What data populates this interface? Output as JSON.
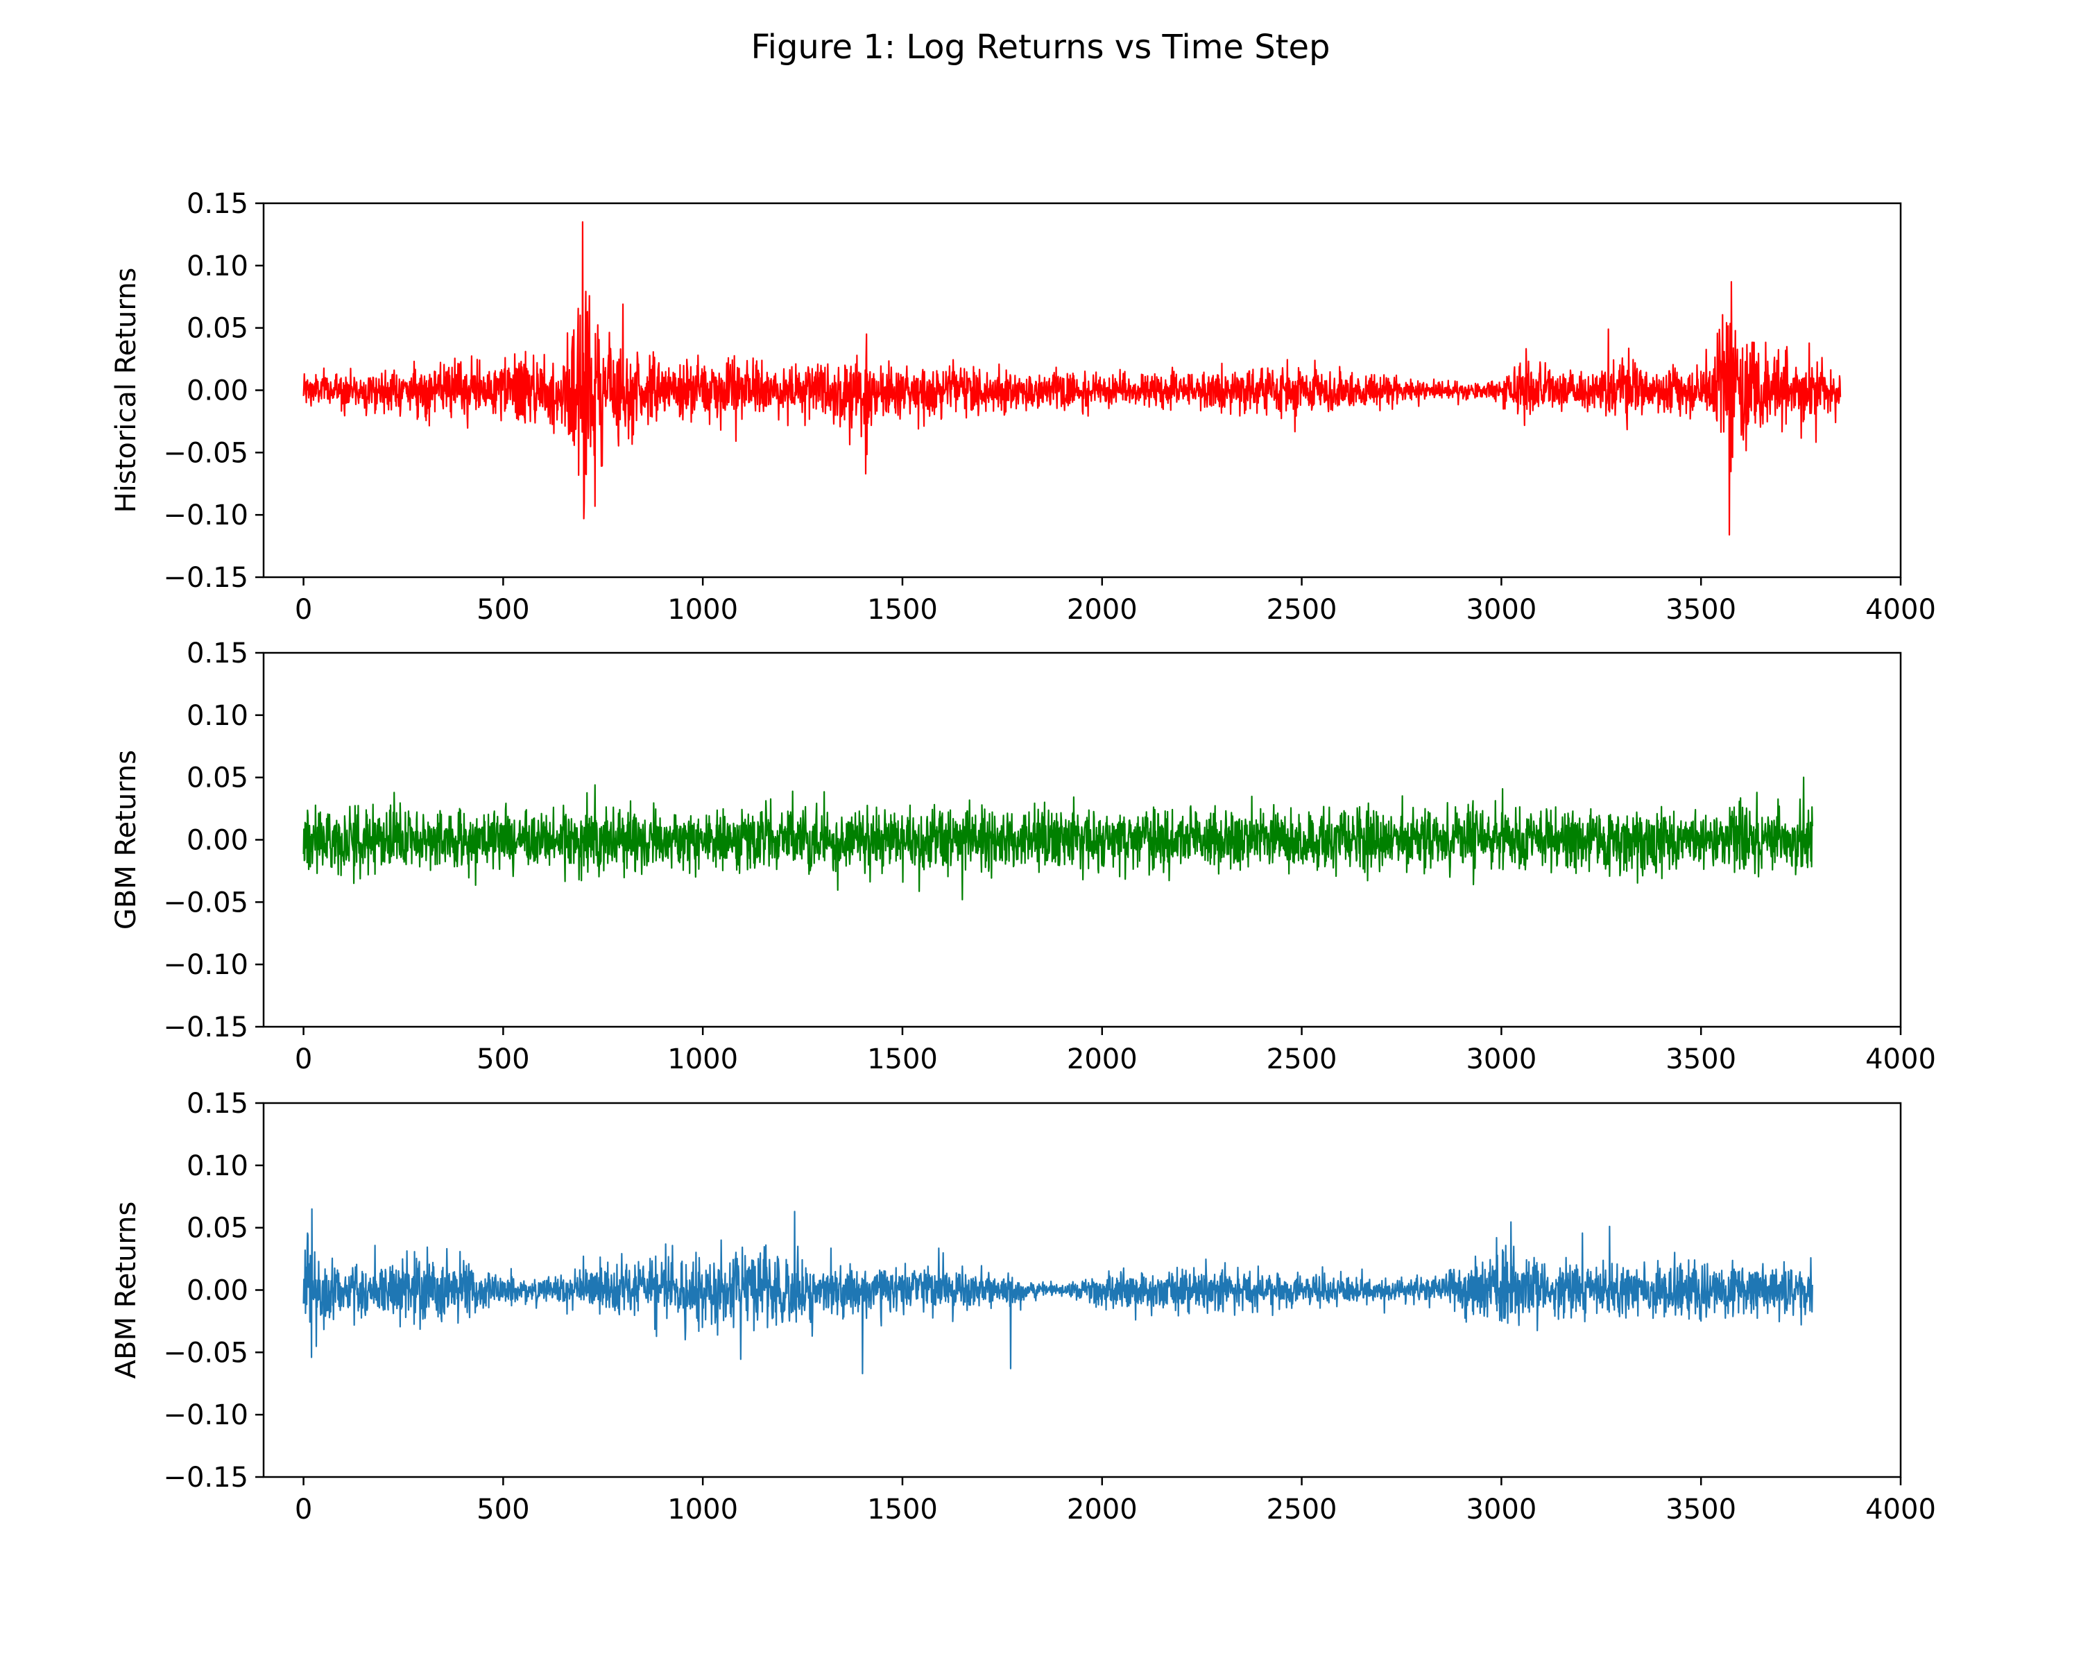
{
  "figure": {
    "title": "Figure 1: Log Returns vs Time Step"
  },
  "chart_data": [
    {
      "type": "line",
      "ylabel": "Historical Returns",
      "xlabel": "",
      "color": "#ff0000",
      "xlim": [
        -100,
        4000
      ],
      "ylim": [
        -0.15,
        0.15
      ],
      "xticks": [
        "0",
        "500",
        "1000",
        "1500",
        "2000",
        "2500",
        "3000",
        "3500",
        "4000"
      ],
      "yticks": [
        "0.15",
        "0.10",
        "0.05",
        "0.00",
        "−0.05",
        "−0.10",
        "−0.15"
      ],
      "grid": false,
      "n_points": 3850,
      "volatility_profile": [
        {
          "x": 0,
          "level": 0.007
        },
        {
          "x": 250,
          "level": 0.008
        },
        {
          "x": 500,
          "level": 0.012
        },
        {
          "x": 650,
          "level": 0.018
        },
        {
          "x": 700,
          "level": 0.04
        },
        {
          "x": 760,
          "level": 0.022
        },
        {
          "x": 900,
          "level": 0.01
        },
        {
          "x": 1080,
          "level": 0.014
        },
        {
          "x": 1200,
          "level": 0.009
        },
        {
          "x": 1400,
          "level": 0.016
        },
        {
          "x": 1500,
          "level": 0.01
        },
        {
          "x": 1800,
          "level": 0.008
        },
        {
          "x": 2100,
          "level": 0.006
        },
        {
          "x": 2450,
          "level": 0.011
        },
        {
          "x": 2700,
          "level": 0.006
        },
        {
          "x": 2950,
          "level": 0.003
        },
        {
          "x": 3050,
          "level": 0.011
        },
        {
          "x": 3200,
          "level": 0.006
        },
        {
          "x": 3300,
          "level": 0.012
        },
        {
          "x": 3500,
          "level": 0.008
        },
        {
          "x": 3575,
          "level": 0.035
        },
        {
          "x": 3650,
          "level": 0.014
        },
        {
          "x": 3850,
          "level": 0.01
        }
      ],
      "peaks": [
        {
          "x": 698,
          "y": 0.135
        },
        {
          "x": 702,
          "y": -0.103
        },
        {
          "x": 730,
          "y": -0.093
        },
        {
          "x": 800,
          "y": 0.069
        },
        {
          "x": 1408,
          "y": -0.067
        },
        {
          "x": 1410,
          "y": 0.045
        },
        {
          "x": 3268,
          "y": 0.049
        },
        {
          "x": 3570,
          "y": -0.116
        },
        {
          "x": 3575,
          "y": 0.087
        }
      ]
    },
    {
      "type": "line",
      "ylabel": "GBM Returns",
      "xlabel": "",
      "color": "#008000",
      "xlim": [
        -100,
        4000
      ],
      "ylim": [
        -0.15,
        0.15
      ],
      "xticks": [
        "0",
        "500",
        "1000",
        "1500",
        "2000",
        "2500",
        "3000",
        "3500",
        "4000"
      ],
      "yticks": [
        "0.15",
        "0.10",
        "0.05",
        "0.00",
        "−0.05",
        "−0.10",
        "−0.15"
      ],
      "grid": false,
      "n_points": 3780,
      "volatility_profile": [
        {
          "x": 0,
          "level": 0.012
        },
        {
          "x": 3780,
          "level": 0.012
        }
      ],
      "peaks": [
        {
          "x": 730,
          "y": 0.044
        },
        {
          "x": 1650,
          "y": -0.048
        },
        {
          "x": 3640,
          "y": 0.038
        }
      ]
    },
    {
      "type": "line",
      "ylabel": "ABM Returns",
      "xlabel": "",
      "color": "#1f77b4",
      "xlim": [
        -100,
        4000
      ],
      "ylim": [
        -0.15,
        0.15
      ],
      "xticks": [
        "0",
        "500",
        "1000",
        "1500",
        "2000",
        "2500",
        "3000",
        "3500",
        "4000"
      ],
      "yticks": [
        "0.15",
        "0.10",
        "0.05",
        "0.00",
        "−0.05",
        "−0.10",
        "−0.15"
      ],
      "grid": false,
      "n_points": 3780,
      "volatility_profile": [
        {
          "x": 0,
          "level": 0.02
        },
        {
          "x": 100,
          "level": 0.01
        },
        {
          "x": 300,
          "level": 0.015
        },
        {
          "x": 550,
          "level": 0.004
        },
        {
          "x": 750,
          "level": 0.01
        },
        {
          "x": 1100,
          "level": 0.017
        },
        {
          "x": 1300,
          "level": 0.01
        },
        {
          "x": 1600,
          "level": 0.01
        },
        {
          "x": 1900,
          "level": 0.002
        },
        {
          "x": 2050,
          "level": 0.009
        },
        {
          "x": 2500,
          "level": 0.007
        },
        {
          "x": 2800,
          "level": 0.004
        },
        {
          "x": 3000,
          "level": 0.016
        },
        {
          "x": 3250,
          "level": 0.009
        },
        {
          "x": 3400,
          "level": 0.012
        },
        {
          "x": 3780,
          "level": 0.01
        }
      ],
      "peaks": [
        {
          "x": 20,
          "y": 0.065
        },
        {
          "x": 20,
          "y": -0.054
        },
        {
          "x": 1230,
          "y": 0.063
        },
        {
          "x": 1400,
          "y": -0.067
        },
        {
          "x": 1770,
          "y": -0.063
        },
        {
          "x": 3270,
          "y": 0.051
        }
      ]
    }
  ]
}
